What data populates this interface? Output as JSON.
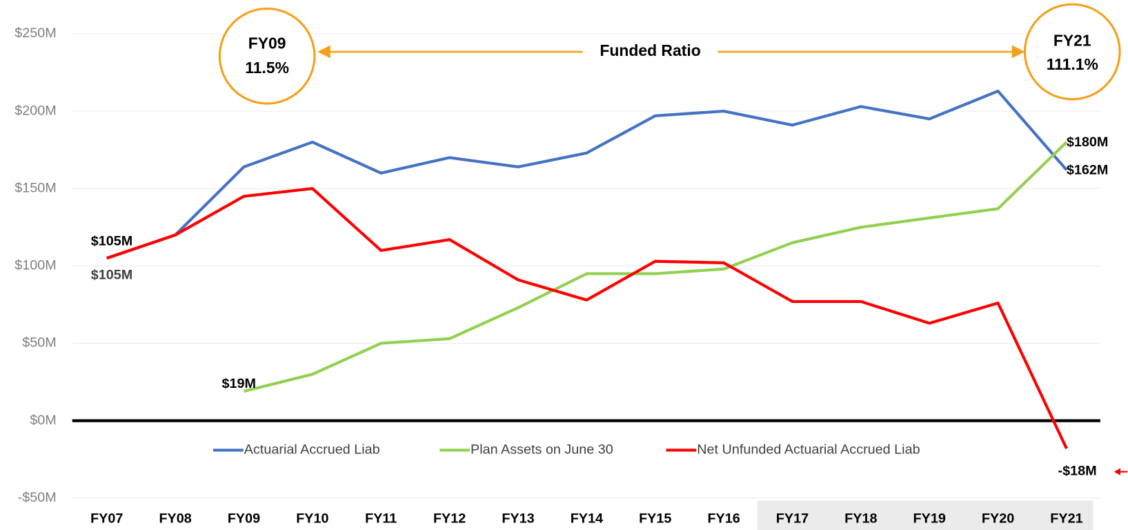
{
  "chart_data": {
    "type": "line",
    "categories": [
      "FY07",
      "FY08",
      "FY09",
      "FY10",
      "FY11",
      "FY12",
      "FY13",
      "FY14",
      "FY15",
      "FY16",
      "FY17",
      "FY18",
      "FY19",
      "FY20",
      "FY21"
    ],
    "series": [
      {
        "name": "Actuarial Accrued Liab",
        "color": "#4472c4",
        "values": [
          105,
          120,
          164,
          180,
          160,
          170,
          164,
          173,
          197,
          200,
          191,
          203,
          195,
          213,
          162
        ],
        "value_labels": [
          "$105M",
          null,
          null,
          null,
          null,
          null,
          null,
          null,
          null,
          null,
          null,
          null,
          null,
          null,
          "$162M"
        ]
      },
      {
        "name": "Plan Assets on June 30",
        "color": "#92d050",
        "values": [
          null,
          null,
          19,
          30,
          50,
          53,
          73,
          95,
          95,
          98,
          115,
          125,
          131,
          137,
          180
        ],
        "value_labels": [
          null,
          null,
          "$19M",
          null,
          null,
          null,
          null,
          null,
          null,
          null,
          null,
          null,
          null,
          null,
          "$180M"
        ]
      },
      {
        "name": "Net Unfunded Actuarial Accrued Liab",
        "color": "#ff0000",
        "values": [
          105,
          120,
          145,
          150,
          110,
          117,
          91,
          78,
          103,
          102,
          77,
          77,
          63,
          76,
          -18
        ],
        "value_labels": [
          "$105M",
          null,
          null,
          null,
          null,
          null,
          null,
          null,
          null,
          null,
          null,
          null,
          null,
          null,
          "-$18M"
        ]
      }
    ],
    "ylim": [
      -50,
      250
    ],
    "yticks": [
      {
        "value": -50,
        "label": "-$50M"
      },
      {
        "value": 0,
        "label": "$0M"
      },
      {
        "value": 50,
        "label": "$50M"
      },
      {
        "value": 100,
        "label": "$100M"
      },
      {
        "value": 150,
        "label": "$150M"
      },
      {
        "value": 200,
        "label": "$200M"
      },
      {
        "value": 250,
        "label": "$250M"
      }
    ],
    "grid": true,
    "legend": "bottom",
    "annotations": {
      "funded_ratio": "Funded Ratio",
      "circles": [
        {
          "lines": [
            "FY09",
            "11.5%"
          ]
        },
        {
          "lines": [
            "FY21",
            "111.1%"
          ]
        }
      ]
    }
  }
}
